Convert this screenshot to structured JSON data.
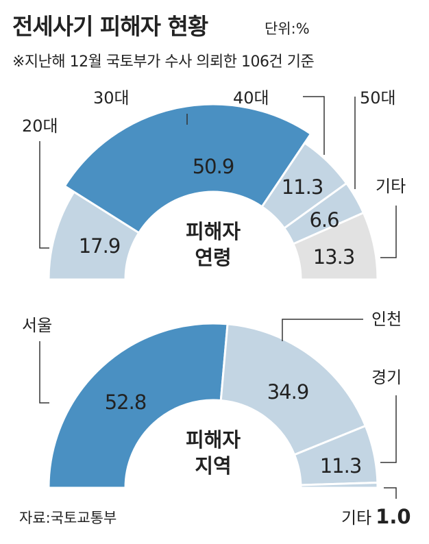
{
  "header": {
    "title": "전세사기 피해자 현황",
    "unit": "단위:%",
    "note": "※지난해 12월 국토부가 수사 의뢰한 106건 기준"
  },
  "source": "자료:국토교통부",
  "chart_data": [
    {
      "type": "pie",
      "variant": "half-donut",
      "center_label": [
        "피해자",
        "연령"
      ],
      "categories": [
        "20대",
        "30대",
        "40대",
        "50대",
        "기타"
      ],
      "values": [
        17.9,
        50.9,
        11.3,
        6.6,
        13.3
      ],
      "colors": [
        "#c3d5e3",
        "#4a90c2",
        "#c3d5e3",
        "#c3d5e3",
        "#e2e2e2"
      ]
    },
    {
      "type": "pie",
      "variant": "half-donut",
      "center_label": [
        "피해자",
        "지역"
      ],
      "categories": [
        "서울",
        "인천",
        "경기",
        "기타"
      ],
      "values": [
        52.8,
        34.9,
        11.3,
        1.0
      ],
      "colors": [
        "#4a90c2",
        "#c3d5e3",
        "#c3d5e3",
        "#c3d5e3"
      ]
    }
  ]
}
